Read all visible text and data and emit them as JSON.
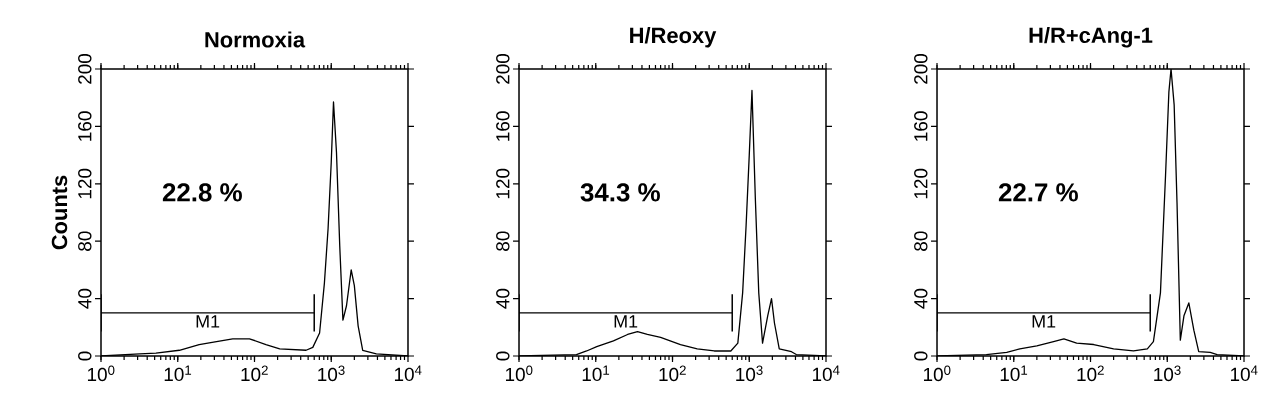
{
  "chart_data": [
    {
      "type": "line",
      "title": "Normoxia",
      "ylabel": "Counts",
      "log": "x",
      "xlim": [
        1,
        10000
      ],
      "xticks": [
        {
          "value": 1,
          "label": "10$^{0}$"
        },
        {
          "value": 10,
          "label": "10$^{1}$"
        },
        {
          "value": 100,
          "label": "10$^{2}$"
        },
        {
          "value": 1000,
          "label": "10$^{3}$"
        },
        {
          "value": 10000,
          "label": "10$^{4}$"
        }
      ],
      "ylim": [
        0,
        200
      ],
      "yticks": [
        0,
        40,
        80,
        120,
        160,
        200
      ],
      "annotations": [
        "22.8 %"
      ],
      "series": [
        {
          "color": "#000000",
          "x": [
            1,
            3.2,
            5.2,
            10.5,
            19,
            32,
            52,
            86,
            141,
            213,
            470,
            575,
            705,
            815,
            910,
            1000,
            1070,
            1170,
            1290,
            1420,
            1580,
            1820,
            2000,
            2240,
            2570,
            3870,
            10000
          ],
          "values": [
            0,
            1.5,
            2,
            4,
            8,
            10,
            12,
            12,
            8,
            5,
            4,
            6,
            16,
            51,
            89,
            135,
            177,
            142,
            77,
            25,
            35,
            60,
            49,
            21,
            4,
            1.5,
            0
          ]
        },
        {
          "name": "M1",
          "color": "#000000",
          "x": [
            1,
            600
          ],
          "values": [
            30,
            30
          ],
          "errors": [
            13,
            13
          ]
        }
      ]
    },
    {
      "type": "line",
      "title": "H/Reoxy",
      "log": "x",
      "xlim": [
        1,
        10000
      ],
      "xticks": [
        {
          "value": 1,
          "label": "10$^{0}$"
        },
        {
          "value": 10,
          "label": "10$^{1}$"
        },
        {
          "value": 100,
          "label": "10$^{2}$"
        },
        {
          "value": 1000,
          "label": "10$^{3}$"
        },
        {
          "value": 10000,
          "label": "10$^{4}$"
        }
      ],
      "ylim": [
        0,
        200
      ],
      "yticks": [
        0,
        40,
        80,
        120,
        160,
        200
      ],
      "annotations": [
        "34.3 %"
      ],
      "series": [
        {
          "color": "#000000",
          "x": [
            1,
            5.6,
            7.6,
            10.3,
            17,
            26,
            35,
            47,
            70,
            127,
            210,
            350,
            575,
            710,
            820,
            910,
            1000,
            1085,
            1200,
            1330,
            1490,
            1740,
            1950,
            2130,
            2460,
            3550,
            4100,
            10000
          ],
          "values": [
            0,
            1,
            3.5,
            6.5,
            10.5,
            15,
            17,
            15,
            13,
            8,
            5,
            3.5,
            3.5,
            9,
            44,
            91,
            140,
            185,
            110,
            44,
            9,
            28,
            40,
            23,
            5,
            3,
            1,
            0
          ]
        },
        {
          "name": "M1",
          "color": "#000000",
          "x": [
            1,
            600
          ],
          "values": [
            30,
            30
          ],
          "errors": [
            13,
            13
          ]
        }
      ]
    },
    {
      "type": "line",
      "title": "H/R+cAng-1",
      "log": "x",
      "xlim": [
        1,
        10000
      ],
      "xticks": [
        {
          "value": 1,
          "label": "10$^{0}$"
        },
        {
          "value": 10,
          "label": "10$^{1}$"
        },
        {
          "value": 100,
          "label": "10$^{2}$"
        },
        {
          "value": 1000,
          "label": "10$^{3}$"
        },
        {
          "value": 10000,
          "label": "10$^{4}$"
        }
      ],
      "ylim": [
        0,
        200
      ],
      "yticks": [
        0,
        40,
        80,
        120,
        160,
        200
      ],
      "annotations": [
        "22.7 %"
      ],
      "series": [
        {
          "color": "#000000",
          "x": [
            1,
            4.4,
            8.1,
            12,
            20,
            33,
            45,
            66,
            110,
            200,
            363,
            550,
            660,
            815,
            950,
            1050,
            1120,
            1230,
            1340,
            1480,
            1650,
            1910,
            2220,
            2570,
            3630,
            4470,
            10000
          ],
          "values": [
            0,
            1,
            2.5,
            5,
            7,
            10,
            12,
            9,
            8,
            5,
            3.5,
            5,
            10,
            44,
            126,
            184,
            200,
            175,
            107,
            11,
            28,
            37,
            18,
            3,
            2.5,
            1,
            0
          ]
        },
        {
          "name": "M1",
          "color": "#000000",
          "x": [
            1,
            600
          ],
          "values": [
            30,
            30
          ],
          "errors": [
            13,
            13
          ]
        }
      ]
    }
  ]
}
